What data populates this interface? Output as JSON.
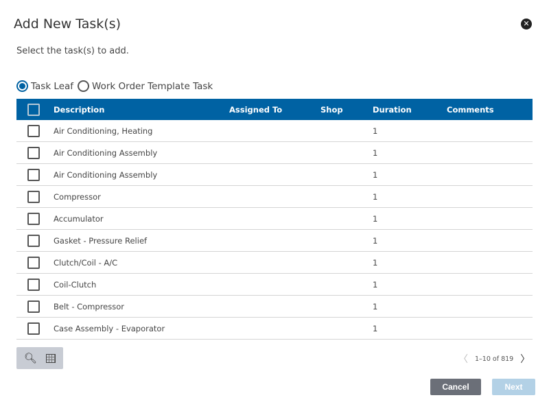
{
  "dialog": {
    "title": "Add New Task(s)",
    "subtitle": "Select the task(s) to add.",
    "close_icon": "close-circle-icon"
  },
  "radios": [
    {
      "label": "Task Leaf",
      "selected": true
    },
    {
      "label": "Work Order Template Task",
      "selected": false
    }
  ],
  "table": {
    "headers": {
      "description": "Description",
      "assigned_to": "Assigned To",
      "shop": "Shop",
      "duration": "Duration",
      "comments": "Comments"
    },
    "rows": [
      {
        "description": "Air Conditioning, Heating",
        "assigned_to": "",
        "shop": "",
        "duration": "1",
        "comments": ""
      },
      {
        "description": "Air Conditioning Assembly",
        "assigned_to": "",
        "shop": "",
        "duration": "1",
        "comments": ""
      },
      {
        "description": "Air Conditioning Assembly",
        "assigned_to": "",
        "shop": "",
        "duration": "1",
        "comments": ""
      },
      {
        "description": "Compressor",
        "assigned_to": "",
        "shop": "",
        "duration": "1",
        "comments": ""
      },
      {
        "description": "Accumulator",
        "assigned_to": "",
        "shop": "",
        "duration": "1",
        "comments": ""
      },
      {
        "description": "Gasket - Pressure Relief",
        "assigned_to": "",
        "shop": "",
        "duration": "1",
        "comments": ""
      },
      {
        "description": "Clutch/Coil - A/C",
        "assigned_to": "",
        "shop": "",
        "duration": "1",
        "comments": ""
      },
      {
        "description": "Coil-Clutch",
        "assigned_to": "",
        "shop": "",
        "duration": "1",
        "comments": ""
      },
      {
        "description": "Belt - Compressor",
        "assigned_to": "",
        "shop": "",
        "duration": "1",
        "comments": ""
      },
      {
        "description": "Case Assembly - Evaporator",
        "assigned_to": "",
        "shop": "",
        "duration": "1",
        "comments": ""
      }
    ]
  },
  "pager": {
    "range": "1–10 of 819"
  },
  "buttons": {
    "cancel": "Cancel",
    "next": "Next",
    "next_disabled": true
  },
  "colors": {
    "accent": "#0062a3",
    "cancel": "#6b6f78",
    "next_disabled": "#b3d1e6"
  }
}
